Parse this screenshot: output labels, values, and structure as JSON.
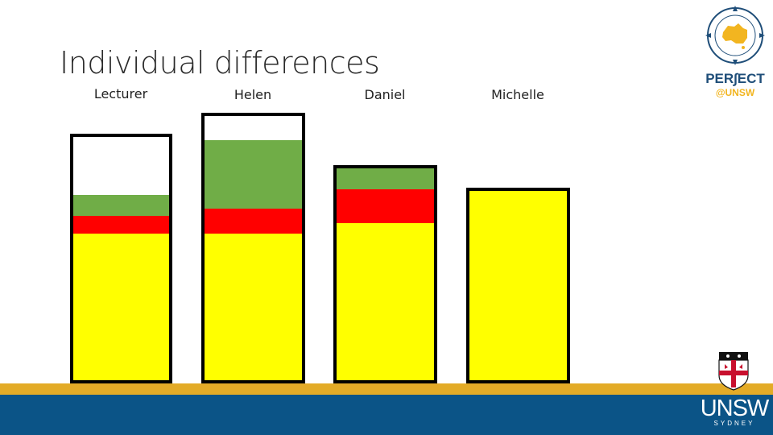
{
  "slide": {
    "title": "Individual differences"
  },
  "colors": {
    "yellow": "#ffff00",
    "red": "#ff0000",
    "green": "#70ad47",
    "white": "#ffffff",
    "gold_band": "#e3ab27",
    "blue_band": "#0b5487"
  },
  "columns": [
    {
      "label": "Lecturer",
      "segments_from_bottom": [
        {
          "color": "yellow",
          "size": 184
        },
        {
          "color": "red",
          "size": 22
        },
        {
          "color": "green",
          "size": 26
        },
        {
          "color": "white",
          "size": 73
        }
      ]
    },
    {
      "label": "Helen",
      "segments_from_bottom": [
        {
          "color": "yellow",
          "size": 184
        },
        {
          "color": "red",
          "size": 31
        },
        {
          "color": "green",
          "size": 86
        },
        {
          "color": "white",
          "size": 30
        }
      ]
    },
    {
      "label": "Daniel",
      "segments_from_bottom": [
        {
          "color": "yellow",
          "size": 196
        },
        {
          "color": "red",
          "size": 42
        },
        {
          "color": "green",
          "size": 26
        }
      ]
    },
    {
      "label": "Michelle",
      "segments_from_bottom": [
        {
          "color": "yellow",
          "size": 240
        }
      ]
    }
  ],
  "logos": {
    "perfect_text": "PER∫ECT",
    "perfect_sub": "@UNSW",
    "unsw_text": "UNSW",
    "unsw_sub": "SYDNEY"
  }
}
